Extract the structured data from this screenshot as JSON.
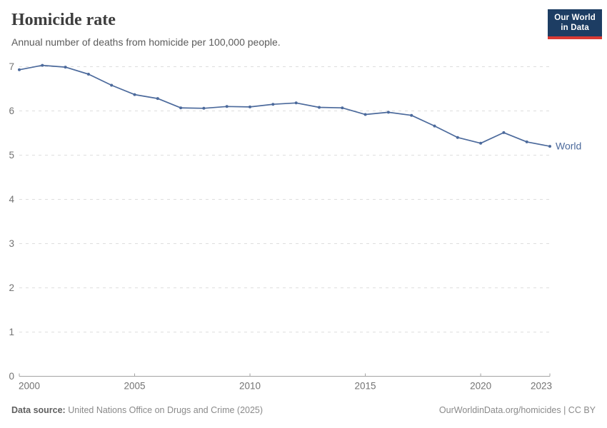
{
  "header": {
    "title": "Homicide rate",
    "subtitle": "Annual number of deaths from homicide per 100,000 people.",
    "logo": {
      "line1": "Our World",
      "line2": "in Data",
      "bg_color": "#1d3d63",
      "accent_color": "#d93a34"
    }
  },
  "chart_data": {
    "type": "line",
    "title": "Homicide rate",
    "xlabel": "",
    "ylabel": "",
    "xlim": [
      2000,
      2023
    ],
    "ylim": [
      0,
      7
    ],
    "grid": "horizontal-dashed",
    "legend_position": "end-of-line-label",
    "x_ticks": [
      2000,
      2005,
      2010,
      2015,
      2020,
      2023
    ],
    "y_ticks": [
      0,
      1,
      2,
      3,
      4,
      5,
      6,
      7
    ],
    "x": [
      2000,
      2001,
      2002,
      2003,
      2004,
      2005,
      2006,
      2007,
      2008,
      2009,
      2010,
      2011,
      2012,
      2013,
      2014,
      2015,
      2016,
      2017,
      2018,
      2019,
      2020,
      2021,
      2022,
      2023
    ],
    "series": [
      {
        "name": "World",
        "color": "#4c6a9c",
        "values": [
          6.93,
          7.03,
          6.99,
          6.83,
          6.58,
          6.37,
          6.28,
          6.07,
          6.06,
          6.1,
          6.09,
          6.15,
          6.18,
          6.08,
          6.07,
          5.92,
          5.97,
          5.9,
          5.66,
          5.4,
          5.27,
          5.51,
          5.3,
          5.2
        ]
      }
    ],
    "colors": {
      "grid": "#dedede",
      "axis": "#a3a3a3",
      "tick_text": "#737373"
    }
  },
  "footer": {
    "datasource_label": "Data source:",
    "datasource_value": "United Nations Office on Drugs and Crime (2025)",
    "rights": "OurWorldinData.org/homicides | CC BY"
  }
}
